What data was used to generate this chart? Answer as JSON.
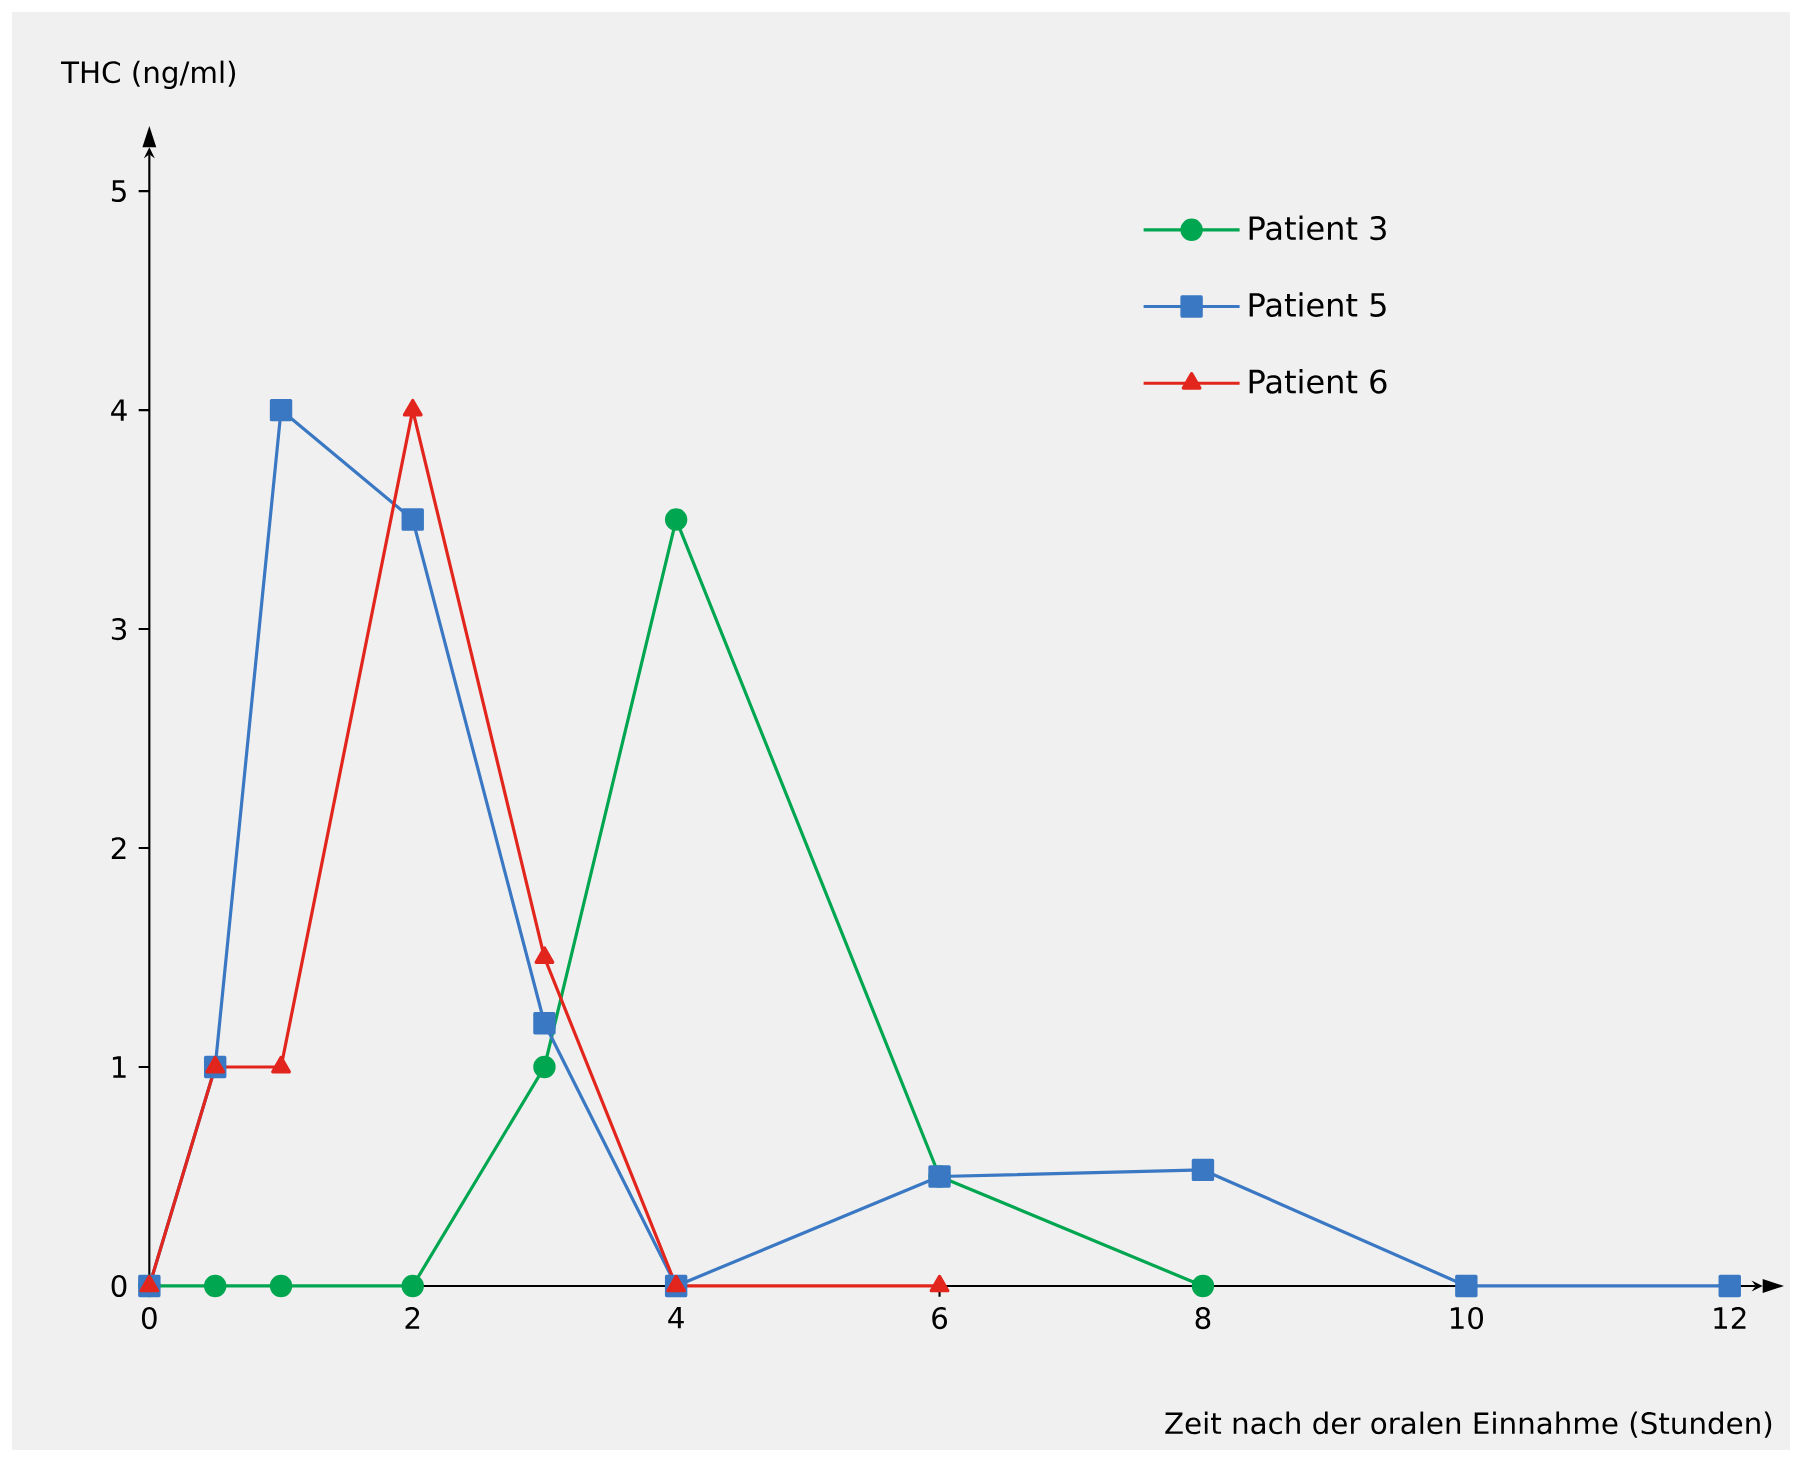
{
  "chart_data": {
    "type": "line",
    "xlabel": "Zeit nach der oralen Einnahme (Stunden)",
    "ylabel": "THC (ng/ml)",
    "xlim": [
      0,
      12.25
    ],
    "ylim": [
      0,
      5.2
    ],
    "xticks": [
      0,
      2,
      4,
      6,
      8,
      10,
      12
    ],
    "yticks": [
      0,
      1,
      2,
      3,
      4,
      5
    ],
    "grid": false,
    "legend": "top right",
    "line_style": "solid",
    "series": [
      {
        "name": "Patient 3",
        "color": "#00a650",
        "marker": "circle",
        "x": [
          0,
          0.5,
          1,
          2,
          3,
          4,
          6,
          8
        ],
        "values": [
          0,
          0,
          0,
          0,
          1,
          3.5,
          0.5,
          0
        ]
      },
      {
        "name": "Patient 5",
        "color": "#3a78c3",
        "marker": "square",
        "x": [
          0,
          0.5,
          1,
          2,
          3,
          4,
          6,
          8,
          10,
          12
        ],
        "values": [
          0,
          1,
          4,
          3.5,
          1.2,
          0,
          0.5,
          0.53,
          0,
          0
        ]
      },
      {
        "name": "Patient 6",
        "color": "#e2261d",
        "marker": "triangle",
        "x": [
          0,
          0.5,
          1,
          2,
          3,
          4,
          6
        ],
        "values": [
          0,
          1,
          1,
          4,
          1.5,
          0,
          0
        ]
      }
    ]
  }
}
